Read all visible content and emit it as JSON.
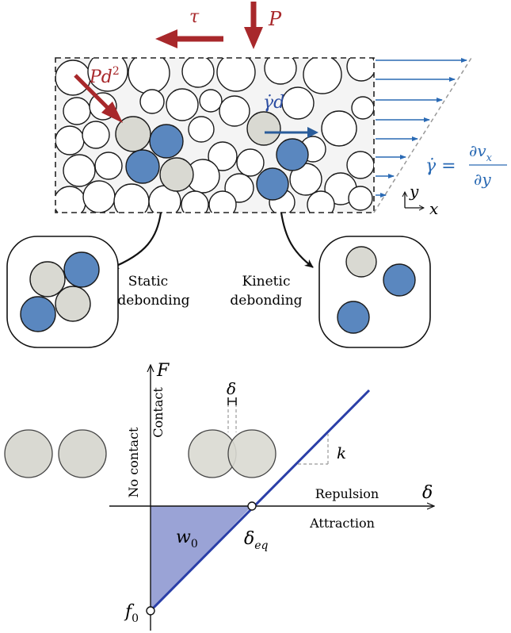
{
  "colors": {
    "force_red": "#a8282b",
    "shear_blue": "#2a6ab4",
    "math_blue": "#2e4fa3",
    "grain_blue": "#5a87bf",
    "grain_grey": "#d9d9d2",
    "line_blue": "#2b3fa8",
    "area_fill": "#9aa3d6"
  },
  "top": {
    "tau": "τ",
    "P": "P",
    "Pd": "Pd",
    "Pd_sup": "2",
    "gamma_d": "γ̇d",
    "shear_rate_lhs": "γ̇ =",
    "shear_rate_num": "∂v",
    "shear_rate_num_sub": "x",
    "shear_rate_den": "∂y",
    "axis_y": "y",
    "axis_x": "x"
  },
  "insets": {
    "static_line1": "Static",
    "static_line2": "debonding",
    "kinetic_line1": "Kinetic",
    "kinetic_line2": "debonding"
  },
  "plot": {
    "y_axis_label": "F",
    "x_axis_label": "δ",
    "no_contact": "No contact",
    "contact": "Contact",
    "delta_small": "δ",
    "k": "k",
    "repulsion": "Repulsion",
    "attraction": "Attraction",
    "w0": "w",
    "w0_sub": "0",
    "delta_eq": "δ",
    "delta_eq_sub": "eq",
    "f0": "f",
    "f0_sub": "0"
  }
}
